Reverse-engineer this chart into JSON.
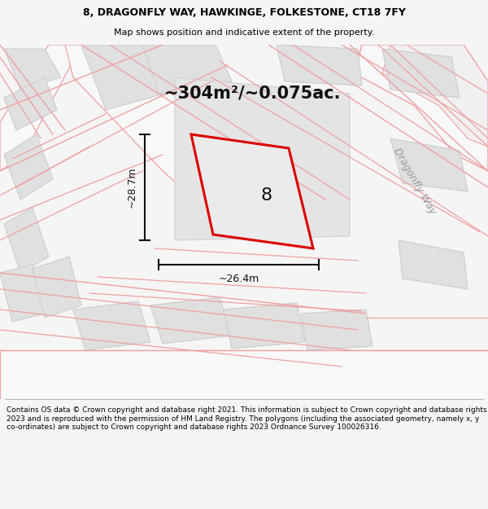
{
  "title_line1": "8, DRAGONFLY WAY, HAWKINGE, FOLKESTONE, CT18 7FY",
  "title_line2": "Map shows position and indicative extent of the property.",
  "area_text": "~304m²/~0.075ac.",
  "width_label": "~26.4m",
  "height_label": "~28.7m",
  "plot_number": "8",
  "road_label": "Dragonfly Way",
  "footer_text": "Contains OS data © Crown copyright and database right 2021. This information is subject to Crown copyright and database rights 2023 and is reproduced with the permission of HM Land Registry. The polygons (including the associated geometry, namely x, y co-ordinates) are subject to Crown copyright and database rights 2023 Ordnance Survey 100026316.",
  "bg_color": "#f5f5f5",
  "map_bg": "#efefef",
  "plot_fill": "#e8e8e8",
  "plot_edge": "#dd0000",
  "road_fill": "#f8f8f8",
  "neighbor_fill": "#e0e0e0",
  "road_outline": "#f0a0a0",
  "dim_color": "#111111",
  "footer_bg": "#ffffff",
  "title_fontsize": 9.0,
  "subtitle_fontsize": 8.0,
  "area_fontsize": 15,
  "dim_fontsize": 9,
  "plot_num_fontsize": 16,
  "road_label_fontsize": 9,
  "footer_fontsize": 6.5
}
